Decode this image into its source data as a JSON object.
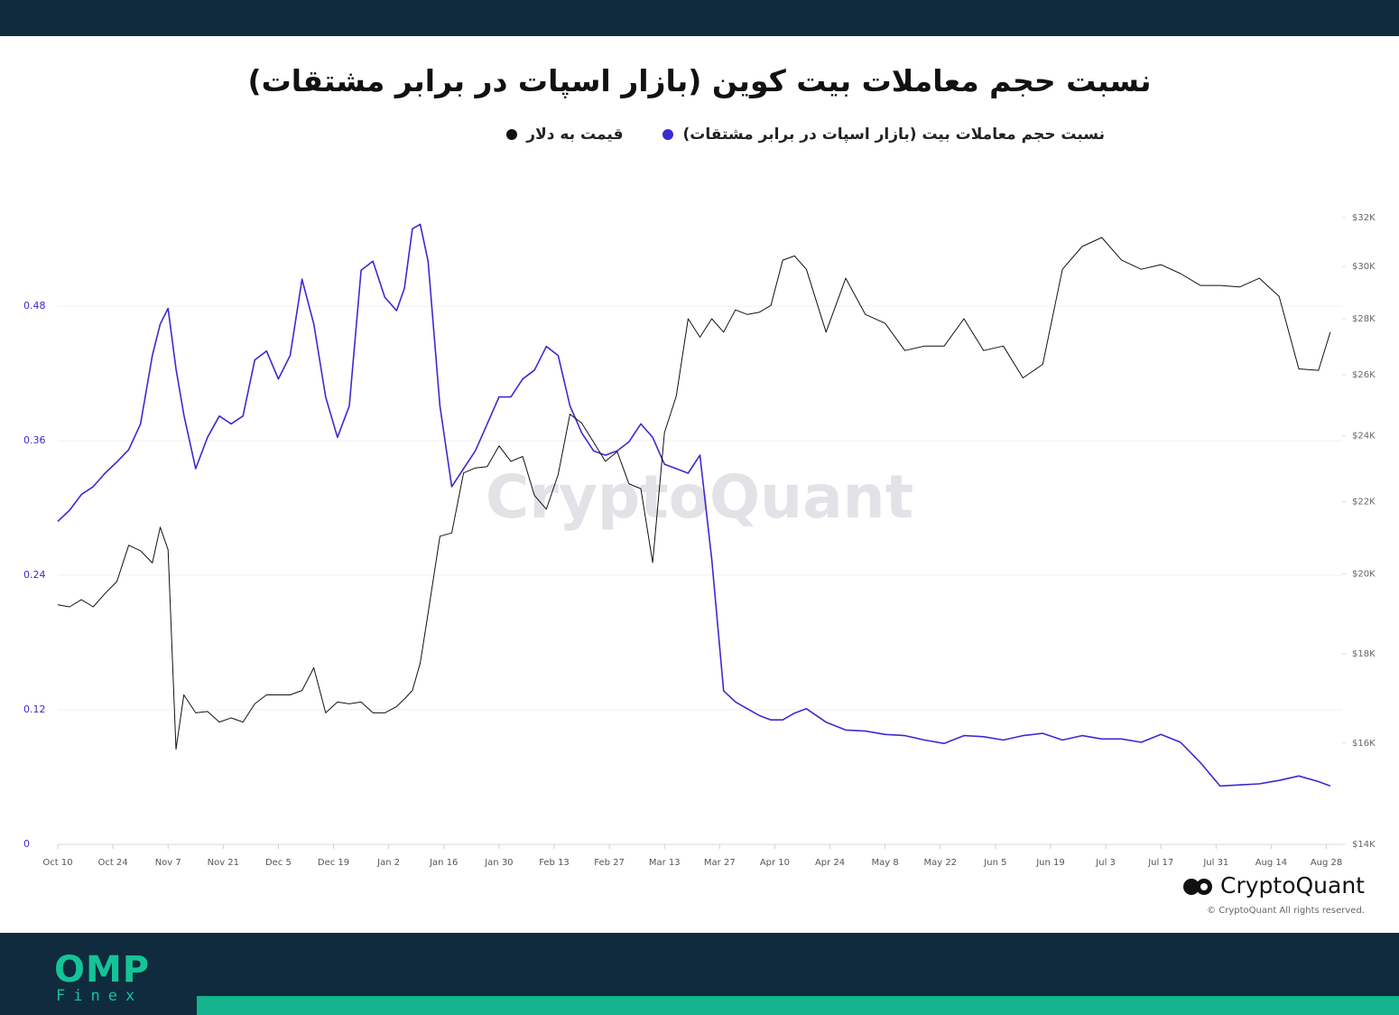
{
  "chart_data": {
    "type": "line",
    "title": "نسبت حجم معاملات بیت کوین (بازار اسپات در برابر مشتقات)",
    "watermark": "CryptoQuant",
    "source": "CryptoQuant",
    "copyright": "© CryptoQuant All rights reserved.",
    "x": [
      "Oct 10",
      "Oct 13",
      "Oct 16",
      "Oct 19",
      "Oct 22",
      "Oct 25",
      "Oct 28",
      "Oct 31",
      "Nov 3",
      "Nov 5",
      "Nov 7",
      "Nov 9",
      "Nov 11",
      "Nov 14",
      "Nov 17",
      "Nov 20",
      "Nov 23",
      "Nov 26",
      "Nov 29",
      "Dec 2",
      "Dec 5",
      "Dec 8",
      "Dec 11",
      "Dec 14",
      "Dec 17",
      "Dec 20",
      "Dec 23",
      "Dec 26",
      "Dec 29",
      "Jan 1",
      "Jan 4",
      "Jan 6",
      "Jan 8",
      "Jan 10",
      "Jan 12",
      "Jan 15",
      "Jan 18",
      "Jan 21",
      "Jan 24",
      "Jan 27",
      "Jan 30",
      "Feb 2",
      "Feb 5",
      "Feb 8",
      "Feb 11",
      "Feb 14",
      "Feb 17",
      "Feb 20",
      "Feb 23",
      "Feb 26",
      "Mar 1",
      "Mar 4",
      "Mar 7",
      "Mar 10",
      "Mar 13",
      "Mar 16",
      "Mar 19",
      "Mar 22",
      "Mar 25",
      "Mar 28",
      "Mar 31",
      "Apr 3",
      "Apr 6",
      "Apr 9",
      "Apr 12",
      "Apr 15",
      "Apr 18",
      "Apr 23",
      "Apr 28",
      "May 3",
      "May 8",
      "May 13",
      "May 18",
      "May 23",
      "May 28",
      "Jun 2",
      "Jun 7",
      "Jun 12",
      "Jun 17",
      "Jun 22",
      "Jun 27",
      "Jul 2",
      "Jul 7",
      "Jul 12",
      "Jul 17",
      "Jul 22",
      "Jul 27",
      "Aug 1",
      "Aug 6",
      "Aug 11",
      "Aug 16",
      "Aug 21",
      "Aug 26",
      "Aug 29"
    ],
    "xlim": [
      "Oct 10",
      "Sep 1"
    ],
    "xticks": [
      "Oct 10",
      "Oct 24",
      "Nov 7",
      "Nov 21",
      "Dec 5",
      "Dec 19",
      "Jan 2",
      "Jan 16",
      "Jan 30",
      "Feb 13",
      "Feb 27",
      "Mar 13",
      "Mar 27",
      "Apr 10",
      "Apr 24",
      "May 8",
      "May 22",
      "Jun 5",
      "Jun 19",
      "Jul 3",
      "Jul 17",
      "Jul 31",
      "Aug 14",
      "Aug 28"
    ],
    "ylim": [
      0,
      0.6
    ],
    "yticks": [
      0,
      0.12,
      0.24,
      0.36,
      0.48
    ],
    "y2lim": [
      14000,
      34000
    ],
    "y2log": true,
    "y2ticks": [
      {
        "value": 14000,
        "label": "$14K"
      },
      {
        "value": 16000,
        "label": "$16K"
      },
      {
        "value": 18000,
        "label": "$18K"
      },
      {
        "value": 20000,
        "label": "$20K"
      },
      {
        "value": 22000,
        "label": "$22K"
      },
      {
        "value": 24000,
        "label": "$24K"
      },
      {
        "value": 26000,
        "label": "$26K"
      },
      {
        "value": 28000,
        "label": "$28K"
      },
      {
        "value": 30000,
        "label": "$30K"
      },
      {
        "value": 32000,
        "label": "$32K"
      }
    ],
    "grid": true,
    "series": [
      {
        "name": "نسبت حجم معاملات بیت (بازار اسپات در برابر مشتقات)",
        "color": "#3a2bd0",
        "values": [
          0.288,
          0.298,
          0.312,
          0.319,
          0.331,
          0.341,
          0.352,
          0.375,
          0.436,
          0.464,
          0.478,
          0.424,
          0.383,
          0.335,
          0.363,
          0.382,
          0.375,
          0.382,
          0.432,
          0.44,
          0.415,
          0.436,
          0.504,
          0.464,
          0.399,
          0.363,
          0.391,
          0.512,
          0.52,
          0.488,
          0.476,
          0.496,
          0.549,
          0.553,
          0.52,
          0.391,
          0.319,
          0.335,
          0.351,
          0.375,
          0.399,
          0.399,
          0.415,
          0.423,
          0.444,
          0.436,
          0.391,
          0.367,
          0.351,
          0.347,
          0.351,
          0.359,
          0.375,
          0.363,
          0.339,
          0.335,
          0.331,
          0.347,
          0.254,
          0.137,
          0.127,
          0.121,
          0.115,
          0.111,
          0.111,
          0.117,
          0.121,
          0.109,
          0.102,
          0.101,
          0.098,
          0.097,
          0.093,
          0.09,
          0.097,
          0.096,
          0.093,
          0.097,
          0.099,
          0.093,
          0.097,
          0.094,
          0.094,
          0.091,
          0.098,
          0.091,
          0.073,
          0.052,
          0.053,
          0.054,
          0.057,
          0.061,
          0.056,
          0.052
        ]
      },
      {
        "name": "قیمت به دلار",
        "color": "#111111",
        "axis": "y2",
        "values": [
          19200,
          19150,
          19330,
          19150,
          19490,
          19800,
          20770,
          20620,
          20290,
          21270,
          20650,
          15870,
          17050,
          16650,
          16680,
          16450,
          16540,
          16450,
          16850,
          17050,
          17050,
          17050,
          17150,
          17670,
          16650,
          16890,
          16850,
          16890,
          16650,
          16650,
          16790,
          16960,
          17150,
          17780,
          18990,
          21020,
          21110,
          22850,
          23000,
          23040,
          23680,
          23200,
          23350,
          22180,
          21780,
          22800,
          24690,
          24400,
          23800,
          23200,
          23500,
          22520,
          22380,
          20300,
          24100,
          25290,
          28000,
          27330,
          28000,
          27510,
          28330,
          28160,
          28240,
          28500,
          30250,
          30420,
          29890,
          27510,
          29540,
          28160,
          27830,
          26850,
          27010,
          27010,
          28000,
          26850,
          27010,
          25900,
          26370,
          29890,
          30800,
          31170,
          30250,
          29890,
          30070,
          29720,
          29260,
          29260,
          29200,
          29540,
          28840,
          26210,
          26160,
          27510
        ]
      }
    ]
  },
  "footer": {
    "logo": "OMP",
    "sub": "Finex"
  }
}
